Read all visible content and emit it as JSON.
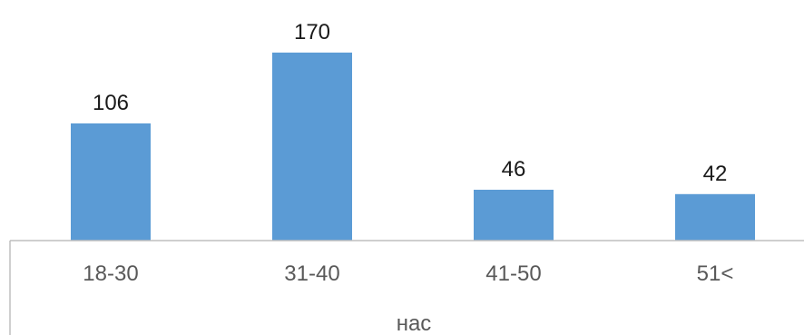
{
  "chart_data": {
    "type": "bar",
    "categories": [
      "18-30",
      "31-40",
      "41-50",
      "51<"
    ],
    "values": [
      106,
      170,
      46,
      42
    ],
    "data_labels": [
      "106",
      "170",
      "46",
      "42"
    ],
    "title": "",
    "xlabel": "нас",
    "ylabel": "",
    "ylim": [
      0,
      195
    ],
    "grid": false,
    "legend": "none",
    "colors": {
      "bar": "#5b9bd5",
      "axis_line": "#bfbfbf",
      "label_text": "#1a1a1a",
      "tick_text": "#595959"
    }
  }
}
